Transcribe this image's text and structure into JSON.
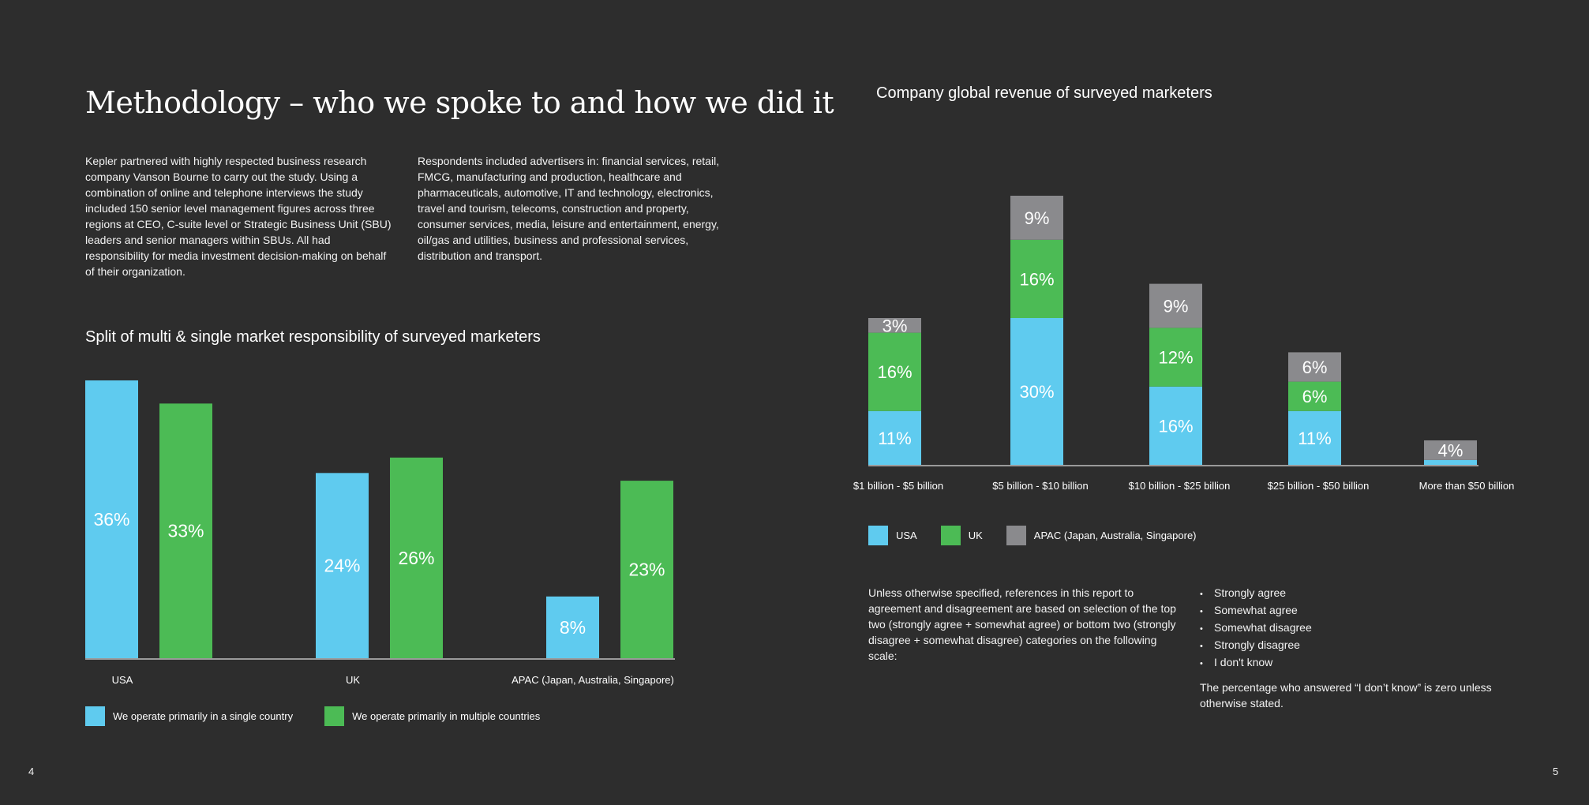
{
  "page": {
    "title": "Methodology – who we spoke to and how we did it",
    "intro_left": "Kepler partnered with highly respected business research company Vanson Bourne to carry out the study. Using a combination of online and telephone interviews the study included 150 senior level management figures across three regions at CEO, C-suite level or Strategic Business Unit (SBU) leaders and senior managers within SBUs. All had responsibility for media investment decision-making on behalf of their organization.",
    "intro_right": "Respondents included advertisers in: financial services, retail, FMCG, manufacturing and production, healthcare and pharmaceuticals, automotive, IT and technology, electronics, travel and tourism, telecoms, construction and property, consumer services, media, leisure and entertainment, energy, oil/gas and utilities, business and professional services, distribution and transport.",
    "page_left": "4",
    "page_right": "5"
  },
  "colors": {
    "blue": "#5fcbef",
    "green": "#4cbb55",
    "gray": "#8a8a8d",
    "axis": "#9a9a9a",
    "background": "#2d2d2d"
  },
  "chart_data": [
    {
      "type": "bar",
      "title": "Split of multi & single market responsibility of surveyed marketers",
      "categories": [
        "USA",
        "UK",
        "APAC (Japan, Australia, Singapore)"
      ],
      "series": [
        {
          "name": "We operate primarily in a single country",
          "color": "#5fcbef",
          "values": [
            36,
            24,
            8
          ]
        },
        {
          "name": "We operate primarily in multiple countries",
          "color": "#4cbb55",
          "values": [
            33,
            26,
            23
          ]
        }
      ],
      "unit": "%",
      "ylim": [
        0,
        36
      ],
      "grid": false,
      "legend": "bottom-left"
    },
    {
      "type": "bar",
      "stacked": true,
      "title": "Company global revenue of surveyed marketers",
      "categories": [
        "$1 billion - $5 billion",
        "$5 billion - $10 billion",
        "$10 billion - $25 billion",
        "$25 billion - $50 billion",
        "More than $50 billion"
      ],
      "series": [
        {
          "name": "USA",
          "color": "#5fcbef",
          "values": [
            11,
            30,
            16,
            11,
            1
          ]
        },
        {
          "name": "UK",
          "color": "#4cbb55",
          "values": [
            16,
            16,
            12,
            6,
            0
          ]
        },
        {
          "name": "APAC (Japan, Australia, Singapore)",
          "color": "#8a8a8d",
          "values": [
            3,
            9,
            9,
            6,
            4
          ]
        }
      ],
      "labels": [
        [
          "11%",
          "30%",
          "16%",
          "11%",
          ""
        ],
        [
          "16%",
          "16%",
          "12%",
          "6%",
          ""
        ],
        [
          "3%",
          "9%",
          "9%",
          "6%",
          "4%"
        ]
      ],
      "unit": "%",
      "ylim": [
        0,
        55
      ],
      "grid": false,
      "legend": "bottom-left"
    }
  ],
  "note": {
    "text": "Unless otherwise specified, references in this report to agreement and disagreement are based on selection of the top two (strongly agree + somewhat agree) or bottom two (strongly disagree + somewhat disagree) categories on the following scale:",
    "scale": [
      "Strongly agree",
      "Somewhat agree",
      "Somewhat disagree",
      "Strongly disagree",
      "I don't know"
    ],
    "dont_know": "The percentage who answered “I don’t know” is zero unless otherwise stated."
  }
}
